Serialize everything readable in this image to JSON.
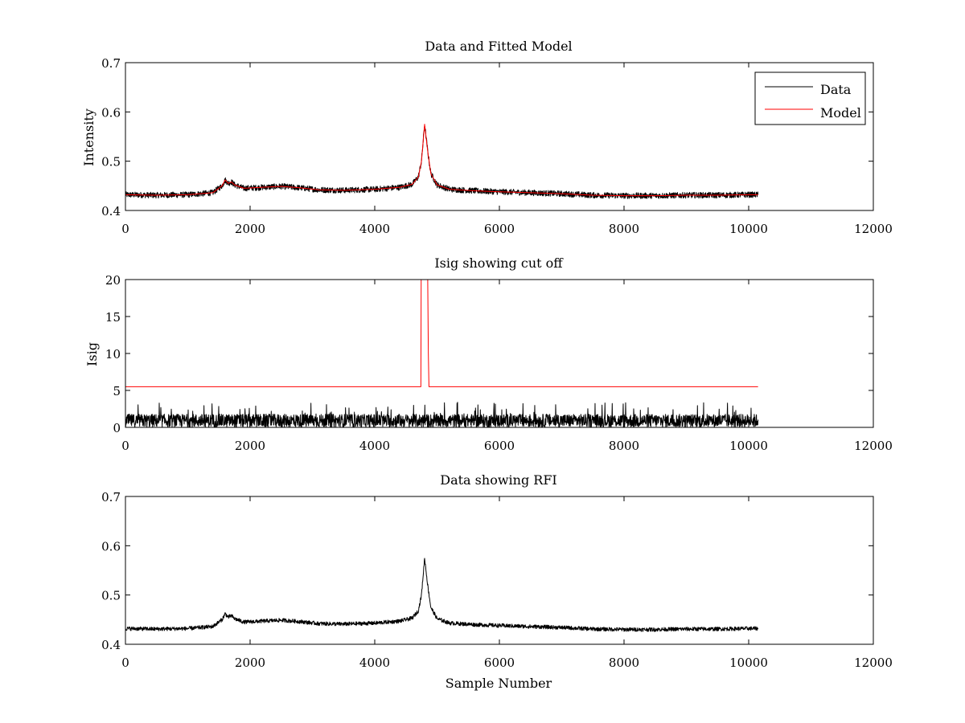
{
  "chart_data": [
    {
      "type": "line",
      "title": "Data and Fitted Model",
      "xlabel": "",
      "ylabel": "Intensity",
      "xlim": [
        0,
        12000
      ],
      "ylim": [
        0.4,
        0.7
      ],
      "xticks": [
        0,
        2000,
        4000,
        6000,
        8000,
        10000,
        12000
      ],
      "yticks": [
        0.4,
        0.5,
        0.6,
        0.7
      ],
      "legend": {
        "position": "top-right",
        "entries": [
          "Data",
          "Model"
        ]
      },
      "grid": false,
      "series": [
        {
          "name": "Data",
          "color": "#000000",
          "noise": 0.012,
          "x": [
            0,
            500,
            1000,
            1400,
            1550,
            1600,
            1650,
            1700,
            1750,
            1900,
            2200,
            2500,
            2800,
            3100,
            3500,
            4000,
            4400,
            4600,
            4700,
            4750,
            4800,
            4850,
            4900,
            5000,
            5200,
            5600,
            6000,
            6500,
            7000,
            7500,
            8000,
            8500,
            9000,
            9500,
            10000,
            10150
          ],
          "y": [
            0.432,
            0.431,
            0.432,
            0.436,
            0.45,
            0.462,
            0.455,
            0.458,
            0.452,
            0.445,
            0.447,
            0.449,
            0.446,
            0.442,
            0.441,
            0.443,
            0.447,
            0.453,
            0.468,
            0.5,
            0.575,
            0.52,
            0.475,
            0.452,
            0.443,
            0.44,
            0.438,
            0.436,
            0.434,
            0.431,
            0.43,
            0.43,
            0.431,
            0.431,
            0.432,
            0.432
          ]
        },
        {
          "name": "Model",
          "color": "#ff0000",
          "noise": 0,
          "x": [
            0,
            500,
            1000,
            1400,
            1550,
            1600,
            1650,
            1700,
            1750,
            1900,
            2200,
            2500,
            2800,
            3100,
            3500,
            4000,
            4400,
            4600,
            4700,
            4750,
            4800,
            4850,
            4900,
            5000,
            5200,
            5600,
            6000,
            6500,
            7000,
            7500,
            8000,
            8500,
            9000,
            9500,
            10000,
            10150
          ],
          "y": [
            0.432,
            0.431,
            0.432,
            0.436,
            0.45,
            0.462,
            0.455,
            0.458,
            0.452,
            0.445,
            0.447,
            0.449,
            0.446,
            0.442,
            0.441,
            0.443,
            0.447,
            0.453,
            0.468,
            0.5,
            0.575,
            0.52,
            0.475,
            0.452,
            0.443,
            0.44,
            0.438,
            0.436,
            0.434,
            0.431,
            0.43,
            0.43,
            0.431,
            0.431,
            0.432,
            0.432
          ]
        }
      ]
    },
    {
      "type": "line",
      "title": "Isig showing cut off",
      "xlabel": "",
      "ylabel": "Isig",
      "xlim": [
        0,
        12000
      ],
      "ylim": [
        0,
        20
      ],
      "xticks": [
        0,
        2000,
        4000,
        6000,
        8000,
        10000,
        12000
      ],
      "yticks": [
        0,
        5,
        10,
        15,
        20
      ],
      "grid": false,
      "series": [
        {
          "name": "Isig",
          "color": "#000000",
          "style": "noise-floor",
          "x": [
            0,
            10150
          ],
          "base": 0.9,
          "spread": 0.9,
          "max": 3.4
        },
        {
          "name": "cut off",
          "color": "#ff0000",
          "x": [
            0,
            4740,
            4745,
            4760,
            4800,
            4845,
            4850,
            4860,
            4870,
            10150
          ],
          "y": [
            5.5,
            5.5,
            20,
            20,
            20,
            20,
            20,
            10,
            5.5,
            5.5
          ]
        }
      ]
    },
    {
      "type": "line",
      "title": "Data showing RFI",
      "xlabel": "Sample Number",
      "ylabel": "",
      "xlim": [
        0,
        12000
      ],
      "ylim": [
        0.4,
        0.7
      ],
      "xticks": [
        0,
        2000,
        4000,
        6000,
        8000,
        10000,
        12000
      ],
      "yticks": [
        0.4,
        0.5,
        0.6,
        0.7
      ],
      "grid": false,
      "series": [
        {
          "name": "Data",
          "color": "#000000",
          "noise": 0.008,
          "x": [
            0,
            500,
            1000,
            1400,
            1550,
            1600,
            1650,
            1700,
            1750,
            1900,
            2200,
            2500,
            2800,
            3100,
            3500,
            4000,
            4400,
            4600,
            4700,
            4750,
            4800,
            4850,
            4900,
            5000,
            5200,
            5600,
            6000,
            6500,
            7000,
            7500,
            8000,
            8500,
            9000,
            9500,
            10000,
            10150
          ],
          "y": [
            0.432,
            0.431,
            0.432,
            0.436,
            0.45,
            0.462,
            0.455,
            0.458,
            0.452,
            0.445,
            0.447,
            0.449,
            0.446,
            0.442,
            0.441,
            0.443,
            0.447,
            0.453,
            0.468,
            0.5,
            0.575,
            0.52,
            0.475,
            0.452,
            0.443,
            0.44,
            0.438,
            0.436,
            0.434,
            0.431,
            0.43,
            0.43,
            0.431,
            0.431,
            0.432,
            0.432
          ]
        }
      ]
    }
  ]
}
